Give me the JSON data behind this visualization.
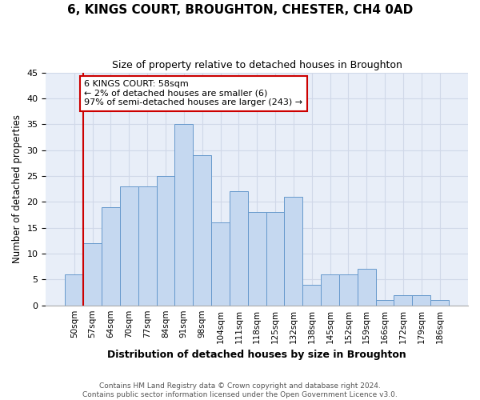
{
  "title": "6, KINGS COURT, BROUGHTON, CHESTER, CH4 0AD",
  "subtitle": "Size of property relative to detached houses in Broughton",
  "xlabel": "Distribution of detached houses by size in Broughton",
  "ylabel": "Number of detached properties",
  "categories": [
    "50sqm",
    "57sqm",
    "64sqm",
    "70sqm",
    "77sqm",
    "84sqm",
    "91sqm",
    "98sqm",
    "104sqm",
    "111sqm",
    "118sqm",
    "125sqm",
    "132sqm",
    "138sqm",
    "145sqm",
    "152sqm",
    "159sqm",
    "166sqm",
    "172sqm",
    "179sqm",
    "186sqm"
  ],
  "values": [
    6,
    12,
    19,
    23,
    23,
    25,
    35,
    29,
    16,
    22,
    18,
    18,
    21,
    4,
    6,
    6,
    7,
    1,
    2,
    2,
    1
  ],
  "bar_color": "#c5d8f0",
  "bar_edge_color": "#6699cc",
  "annotation_box_text": "6 KINGS COURT: 58sqm\n← 2% of detached houses are smaller (6)\n97% of semi-detached houses are larger (243) →",
  "annotation_box_color": "#ffffff",
  "annotation_box_edge_color": "#cc0000",
  "annotation_line_color": "#cc0000",
  "ylim": [
    0,
    45
  ],
  "yticks": [
    0,
    5,
    10,
    15,
    20,
    25,
    30,
    35,
    40,
    45
  ],
  "footer_line1": "Contains HM Land Registry data © Crown copyright and database right 2024.",
  "footer_line2": "Contains public sector information licensed under the Open Government Licence v3.0.",
  "grid_color": "#d0d8e8",
  "bg_color": "#e8eef8"
}
